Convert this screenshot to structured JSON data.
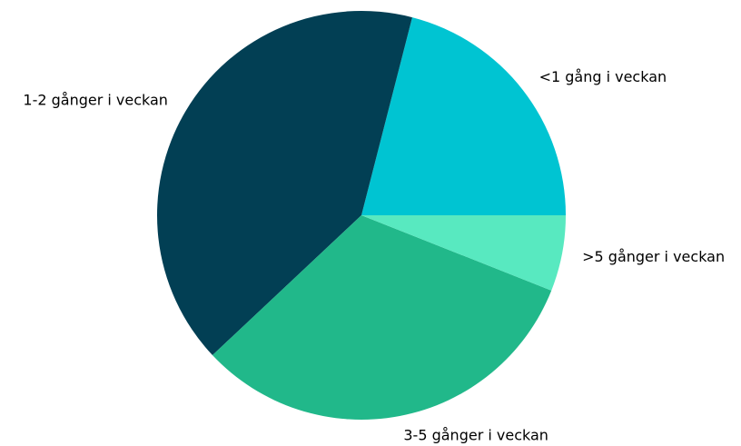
{
  "chart_data": {
    "type": "pie",
    "categories": [
      "<1 gång i veckan",
      "1-2 gånger i veckan",
      "3-5 gånger i veckan",
      ">5 gånger i veckan"
    ],
    "values": [
      21,
      41,
      32,
      6
    ],
    "colors": [
      "#00c4d2",
      "#023f54",
      "#21b88a",
      "#58e9c0"
    ]
  }
}
